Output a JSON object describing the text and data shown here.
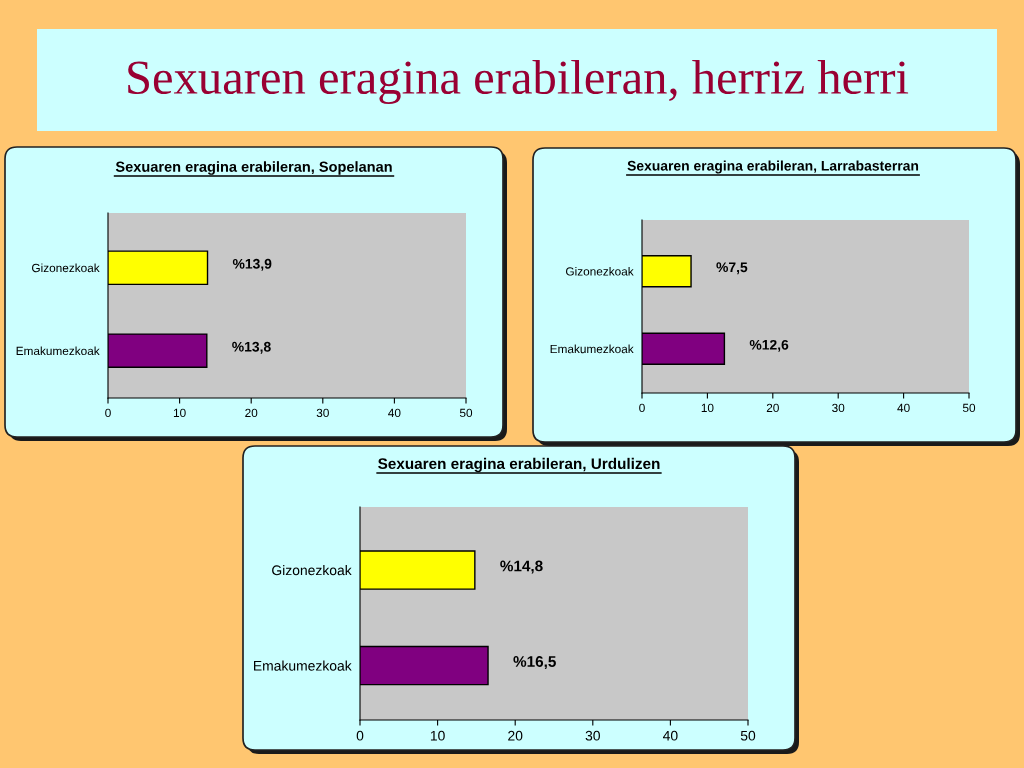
{
  "chart_data": [
    {
      "type": "bar",
      "orientation": "horizontal",
      "title": "Sexuaren eragina erabileran, Sopelanan",
      "annotations": [
        "Sexuaren eragina erabileran, herriz herri"
      ],
      "categories": [
        "Gizonezkoak",
        "Emakumezkoak"
      ],
      "values": [
        13.9,
        13.8
      ],
      "colors": [
        "#ffff00",
        "#800080"
      ],
      "value_labels": [
        "%13,9",
        "%13,8"
      ],
      "xlim": [
        0,
        50
      ],
      "xticks": [
        0,
        10,
        20,
        30,
        40,
        50
      ]
    },
    {
      "type": "bar",
      "orientation": "horizontal",
      "title": "Sexuaren eragina erabileran, Larrabasterran",
      "categories": [
        "Gizonezkoak",
        "Emakumezkoak"
      ],
      "values": [
        7.5,
        12.6
      ],
      "colors": [
        "#ffff00",
        "#800080"
      ],
      "value_labels": [
        "%7,5",
        "%12,6"
      ],
      "xlim": [
        0,
        50
      ],
      "xticks": [
        0,
        10,
        20,
        30,
        40,
        50
      ]
    },
    {
      "type": "bar",
      "orientation": "horizontal",
      "title": "Sexuaren eragina erabileran, Urdulizen",
      "categories": [
        "Gizonezkoak",
        "Emakumezkoak"
      ],
      "values": [
        14.8,
        16.5
      ],
      "colors": [
        "#ffff00",
        "#800080"
      ],
      "value_labels": [
        "%14,8",
        "%16,5"
      ],
      "xlim": [
        0,
        50
      ],
      "xticks": [
        0,
        10,
        20,
        30,
        40,
        50
      ]
    }
  ]
}
